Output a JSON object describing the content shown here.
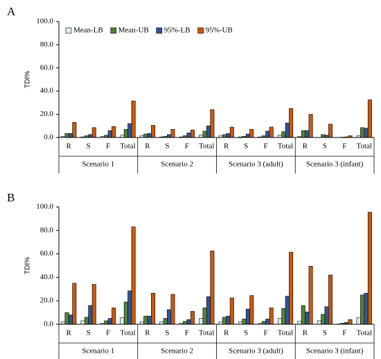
{
  "chart_data": [
    {
      "type": "bar",
      "panel_label": "A",
      "y_label": "TDI%",
      "categories": [
        "R",
        "S",
        "F",
        "Total",
        "R",
        "S",
        "F",
        "Total",
        "R",
        "S",
        "F",
        "Total",
        "R",
        "S",
        "F",
        "Total"
      ],
      "groups": [
        "Scenario 1",
        "Scenario 2",
        "Scenario 3 (adult)",
        "Scenario 3 (infant)"
      ],
      "ylim": [
        0,
        100
      ],
      "yticks": [
        {
          "value": 0,
          "label": "0.0"
        },
        {
          "value": 20,
          "label": "20.0"
        },
        {
          "value": 40,
          "label": "40.0"
        },
        {
          "value": 60,
          "label": "60.0"
        },
        {
          "value": 80,
          "label": "80.0"
        },
        {
          "value": 100,
          "label": "100.0"
        }
      ],
      "legend": "upper left",
      "series": [
        {
          "name": "Mean-LB",
          "color": "#deebf7",
          "values": [
            1,
            0.5,
            1,
            2,
            1.5,
            0.5,
            0.5,
            2,
            1.5,
            0.5,
            0.5,
            2,
            1,
            0,
            0,
            1.5
          ]
        },
        {
          "name": "Mean-UB",
          "color": "#548235",
          "values": [
            3.5,
            1.5,
            2,
            7,
            3,
            1,
            1.5,
            5.5,
            2.5,
            1,
            1.5,
            5,
            6,
            2.5,
            0.3,
            8.5
          ]
        },
        {
          "name": "95%-LB",
          "color": "#2f5597",
          "values": [
            3.5,
            2.5,
            6,
            12,
            3.5,
            2.5,
            4,
            10,
            3.5,
            3,
            5.5,
            12.5,
            6,
            2,
            0.5,
            8
          ]
        },
        {
          "name": "95%-UB",
          "color": "#c55a11",
          "values": [
            13,
            8.5,
            9.5,
            31.5,
            10.5,
            7,
            6.5,
            24,
            9,
            7,
            9,
            25,
            20,
            11.5,
            1.5,
            32.5
          ]
        }
      ]
    },
    {
      "type": "bar",
      "panel_label": "B",
      "y_label": "TDI%",
      "categories": [
        "R",
        "S",
        "F",
        "Total",
        "R",
        "S",
        "F",
        "Total",
        "R",
        "S",
        "F",
        "Total",
        "R",
        "S",
        "F",
        "Total"
      ],
      "groups": [
        "Scenario 1",
        "Scenario 2",
        "Scenario 3 (adult)",
        "Scenario 3 (infant)"
      ],
      "ylim": [
        0,
        100
      ],
      "yticks": [
        {
          "value": 0,
          "label": "0.0"
        },
        {
          "value": 20,
          "label": "20.0"
        },
        {
          "value": 40,
          "label": "40.0"
        },
        {
          "value": 60,
          "label": "60.0"
        },
        {
          "value": 80,
          "label": "80.0"
        },
        {
          "value": 100,
          "label": "100.0"
        }
      ],
      "series": [
        {
          "color": "#deebf7",
          "values": [
            2,
            3,
            1,
            5.5,
            2,
            2,
            1,
            5,
            2,
            2,
            1,
            5,
            2.5,
            3,
            0.3,
            5.5
          ]
        },
        {
          "color": "#548235",
          "values": [
            10,
            6,
            3,
            19,
            7,
            5,
            2.5,
            14,
            6,
            4.5,
            2.5,
            13.5,
            16,
            8.5,
            1,
            25
          ]
        },
        {
          "color": "#2f5597",
          "values": [
            8,
            16,
            5,
            28.5,
            7,
            12.5,
            4,
            23.5,
            7,
            13,
            4.5,
            24,
            10.5,
            15,
            1.5,
            26.5
          ]
        },
        {
          "color": "#c55a11",
          "values": [
            35,
            34,
            14,
            83,
            26.5,
            25.5,
            11,
            62.5,
            22.5,
            24.5,
            14,
            61.5,
            49.5,
            42,
            4,
            95.5
          ]
        }
      ]
    }
  ]
}
